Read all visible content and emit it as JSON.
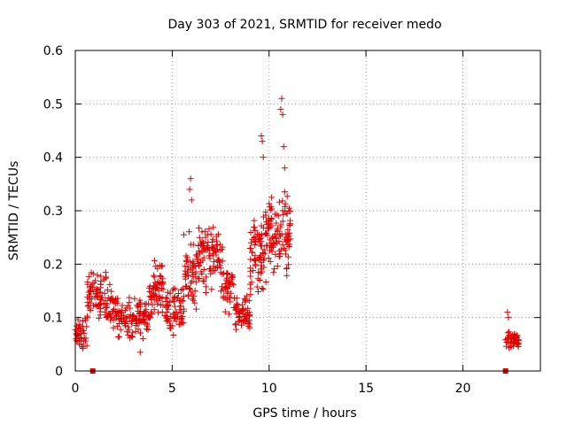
{
  "chart_data": {
    "type": "scatter",
    "title": "Day 303 of 2021, SRMTID for receiver medo",
    "xlabel": "GPS time / hours",
    "ylabel": "SRMTID / TECUs",
    "xlim": [
      0,
      24
    ],
    "ylim": [
      0,
      0.6
    ],
    "xticks": [
      0,
      5,
      10,
      15,
      20
    ],
    "yticks": [
      0,
      0.1,
      0.2,
      0.3,
      0.4,
      0.5,
      0.6
    ],
    "ytick_labels": [
      "0",
      "0.1",
      "0.2",
      "0.3",
      "0.4",
      "0.5",
      "0.6"
    ],
    "grid": true,
    "marker": "+",
    "color": "#e00000",
    "segments": [
      {
        "x_start": 0.0,
        "x_end": 0.6,
        "y_center": 0.07,
        "spread": 0.025,
        "count": 40
      },
      {
        "x_start": 0.6,
        "x_end": 1.6,
        "y_center": 0.14,
        "spread": 0.04,
        "count": 70
      },
      {
        "x_start": 1.6,
        "x_end": 2.2,
        "y_center": 0.12,
        "spread": 0.03,
        "count": 45
      },
      {
        "x_start": 2.2,
        "x_end": 3.8,
        "y_center": 0.1,
        "spread": 0.03,
        "count": 110
      },
      {
        "x_start": 3.8,
        "x_end": 4.6,
        "y_center": 0.15,
        "spread": 0.045,
        "count": 60
      },
      {
        "x_start": 4.6,
        "x_end": 5.6,
        "y_center": 0.12,
        "spread": 0.04,
        "count": 70
      },
      {
        "x_start": 5.6,
        "x_end": 6.3,
        "y_center": 0.18,
        "spread": 0.06,
        "count": 55
      },
      {
        "x_start": 6.3,
        "x_end": 7.6,
        "y_center": 0.21,
        "spread": 0.05,
        "count": 95
      },
      {
        "x_start": 7.6,
        "x_end": 8.2,
        "y_center": 0.16,
        "spread": 0.04,
        "count": 40
      },
      {
        "x_start": 8.2,
        "x_end": 9.0,
        "y_center": 0.11,
        "spread": 0.03,
        "count": 60
      },
      {
        "x_start": 9.0,
        "x_end": 9.8,
        "y_center": 0.22,
        "spread": 0.07,
        "count": 70
      },
      {
        "x_start": 9.8,
        "x_end": 10.4,
        "y_center": 0.25,
        "spread": 0.06,
        "count": 55
      },
      {
        "x_start": 10.4,
        "x_end": 11.1,
        "y_center": 0.26,
        "spread": 0.07,
        "count": 60
      },
      {
        "x_start": 22.2,
        "x_end": 22.9,
        "y_center": 0.06,
        "spread": 0.015,
        "count": 50
      }
    ],
    "outliers": [
      {
        "x": 3.35,
        "y": 0.035
      },
      {
        "x": 5.95,
        "y": 0.36
      },
      {
        "x": 5.9,
        "y": 0.34
      },
      {
        "x": 6.0,
        "y": 0.32
      },
      {
        "x": 9.6,
        "y": 0.44
      },
      {
        "x": 9.65,
        "y": 0.43
      },
      {
        "x": 9.7,
        "y": 0.4
      },
      {
        "x": 10.65,
        "y": 0.51
      },
      {
        "x": 10.6,
        "y": 0.49
      },
      {
        "x": 10.7,
        "y": 0.48
      },
      {
        "x": 10.75,
        "y": 0.42
      },
      {
        "x": 10.8,
        "y": 0.38
      },
      {
        "x": 22.3,
        "y": 0.11
      },
      {
        "x": 22.35,
        "y": 0.1
      }
    ],
    "square_markers": [
      {
        "x": 0.9,
        "y": 0.0
      },
      {
        "x": 22.2,
        "y": 0.0
      }
    ]
  }
}
